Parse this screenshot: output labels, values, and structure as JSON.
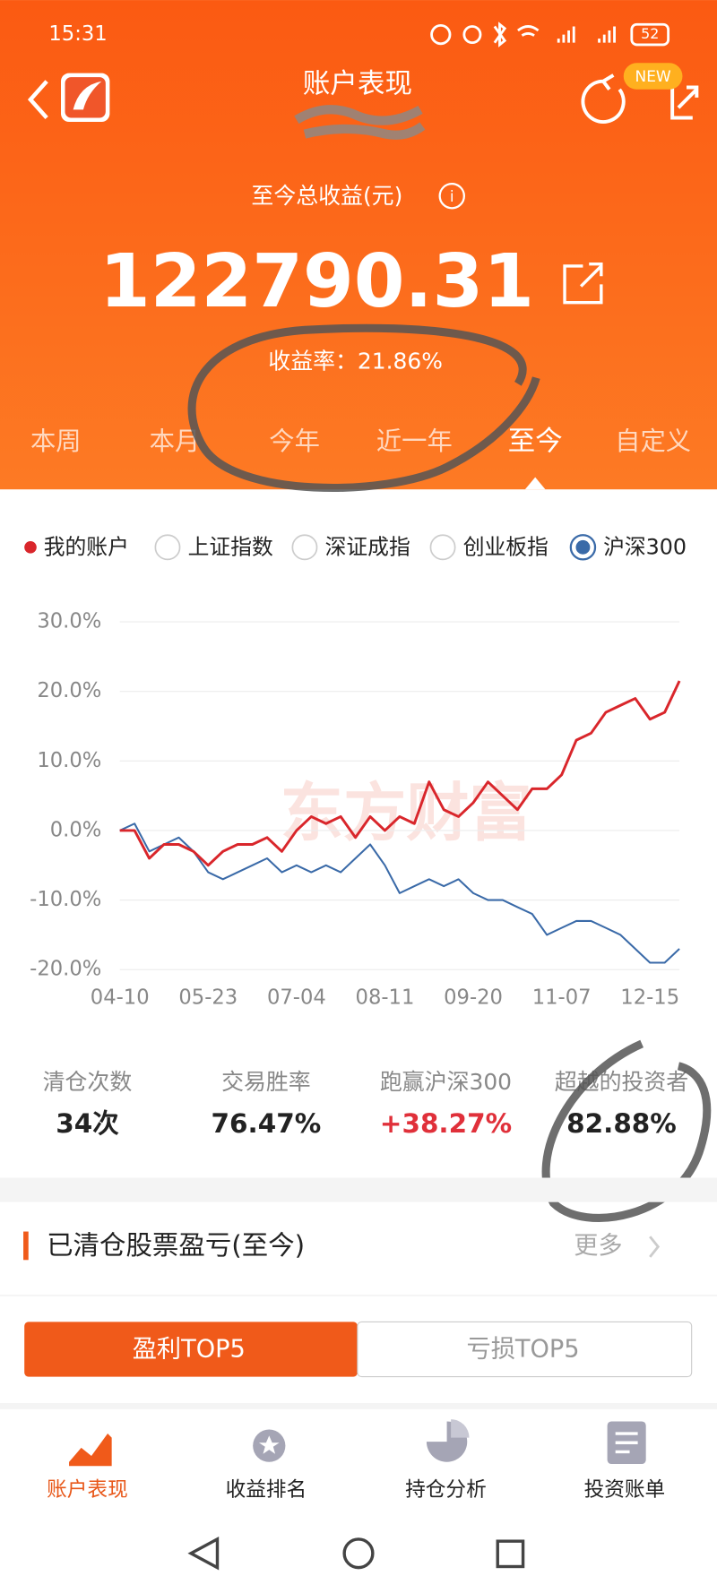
{
  "status_bar": {
    "time": "15:31",
    "battery": "52"
  },
  "header": {
    "title": "账户表现",
    "badge": "NEW"
  },
  "summary": {
    "label": "至今总收益(元)",
    "amount": "122790.31",
    "rate": "收益率：21.86%"
  },
  "tabs": [
    "本周",
    "本月",
    "今年",
    "近一年",
    "至今",
    "自定义"
  ],
  "chart_data": {
    "type": "line",
    "watermark": "东方财富",
    "index_options": [
      "上证指数",
      "深证成指",
      "创业板指"
    ],
    "categories": [
      "04-10",
      null,
      null,
      null,
      null,
      null,
      "05-23",
      null,
      null,
      null,
      null,
      null,
      "07-04",
      null,
      null,
      null,
      null,
      null,
      "08-11",
      null,
      null,
      null,
      null,
      null,
      "09-20",
      null,
      null,
      null,
      null,
      null,
      "11-07",
      null,
      null,
      null,
      null,
      null,
      "12-15",
      null,
      null
    ],
    "series": [
      {
        "name": "我的账户",
        "color": "#d9262b",
        "values": [
          0,
          0,
          -4,
          -2,
          -2,
          -3,
          -5,
          -3,
          -2,
          -2,
          -1,
          -3,
          0,
          2,
          1,
          2,
          -1,
          2,
          0,
          2,
          1,
          7,
          3,
          2,
          4,
          7,
          5,
          3,
          6,
          6,
          8,
          13,
          14,
          17,
          18,
          19,
          16,
          17,
          21.5
        ]
      },
      {
        "name": "沪深300",
        "color": "#3a6aa8",
        "values": [
          0,
          1,
          -3,
          -2,
          -1,
          -3,
          -6,
          -7,
          -6,
          -5,
          -4,
          -6,
          -5,
          -6,
          -5,
          -6,
          -4,
          -2,
          -5,
          -9,
          -8,
          -7,
          -8,
          -7,
          -9,
          -10,
          -10,
          -11,
          -12,
          -15,
          -14,
          -13,
          -13,
          -14,
          -15,
          -17,
          -19,
          -19,
          -17
        ]
      }
    ],
    "ylim": [
      -21.5,
      32
    ],
    "yticks": [
      {
        "value": -20,
        "label": "-20.0%"
      },
      {
        "value": -10,
        "label": "-10.0%"
      },
      {
        "value": 0,
        "label": "0.0%"
      },
      {
        "value": 10,
        "label": "10.0%"
      },
      {
        "value": 20,
        "label": "20.0%"
      },
      {
        "value": 30,
        "label": "30.0%"
      }
    ],
    "grid": true
  },
  "stats": [
    {
      "label": "清仓次数",
      "value": "34次"
    },
    {
      "label": "交易胜率",
      "value": "76.47%"
    },
    {
      "label": "跑赢沪深300",
      "value": "+38.27%"
    },
    {
      "label": "超越的投资者",
      "value": "82.88%"
    }
  ],
  "section": {
    "title": "已清仓股票盈亏(至今)",
    "more": "更多"
  },
  "buttons": [
    "盈利TOP5",
    "亏损TOP5"
  ],
  "nav": [
    "账户表现",
    "收益排名",
    "持仓分析",
    "投资账单"
  ]
}
